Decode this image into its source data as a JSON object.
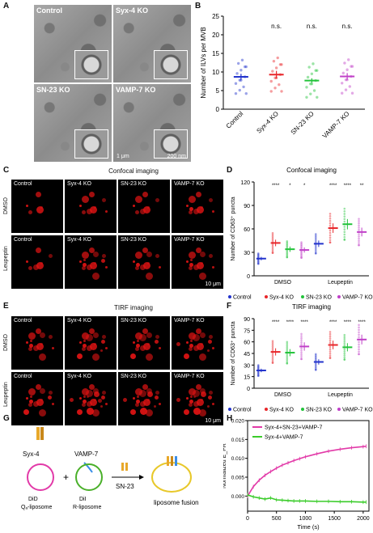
{
  "panels": {
    "A": "A",
    "B": "B",
    "C": "C",
    "D": "D",
    "E": "E",
    "F": "F",
    "G": "G",
    "H": "H"
  },
  "panelA": {
    "labels": [
      "Control",
      "Syx-4 KO",
      "SN-23 KO",
      "VAMP-7 KO"
    ],
    "scale_main": "1 μm",
    "scale_inset": "200 nm"
  },
  "panelC": {
    "title": "Confocal imaging",
    "rows": [
      "DMSO",
      "Leupeptin"
    ],
    "cols": [
      "Control",
      "Syx-4 KO",
      "SN-23 KO",
      "VAMP-7 KO"
    ],
    "scale": "10 μm"
  },
  "panelE": {
    "title": "TIRF imaging",
    "rows": [
      "DMSO",
      "Leupeptin"
    ],
    "cols": [
      "Control",
      "Syx-4 KO",
      "SN-23 KO",
      "VAMP-7 KO"
    ],
    "scale": "10 μm"
  },
  "panelG": {
    "syx": "Syx-4",
    "vamp": "VAMP-7",
    "did": "DiD",
    "dil": "DiI",
    "qlipo": "Qₐ-liposome",
    "rlipo": "R-liposome",
    "plus": "+",
    "sn": "SN-23",
    "fusion": "liposome fusion"
  },
  "colors": {
    "control": "#2233cc",
    "syx": "#e8262a",
    "sn": "#22c33a",
    "vamp": "#c040c8",
    "magenta": "#e23aa8",
    "green": "#3acc2a"
  },
  "chart_data": [
    {
      "type": "scatter",
      "panel": "B",
      "ylabel": "Number of ILVs per MVB",
      "ylim": [
        0,
        25
      ],
      "yticks": [
        0,
        5,
        10,
        15,
        20,
        25
      ],
      "categories": [
        "Control",
        "Syx-4 KO",
        "SN-23 KO",
        "VAMP-7 KO"
      ],
      "means": [
        8.7,
        9.3,
        7.7,
        8.8
      ],
      "sem": [
        0.8,
        1.0,
        0.6,
        0.9
      ],
      "annotations": [
        "",
        "n.s.",
        "n.s.",
        "n.s."
      ]
    },
    {
      "type": "scatter",
      "panel": "D",
      "title": "Confocal imaging",
      "ylabel": "Number of CD63⁺ puncta",
      "ylim": [
        0,
        120
      ],
      "yticks": [
        0,
        30,
        60,
        90,
        120
      ],
      "groups": [
        "DMSO",
        "Leupeptin"
      ],
      "series": [
        {
          "name": "Control",
          "values": [
            22,
            41
          ]
        },
        {
          "name": "Syx-4 KO",
          "values": [
            42,
            61
          ]
        },
        {
          "name": "SN-23 KO",
          "values": [
            34,
            66
          ]
        },
        {
          "name": "VAMP-7 KO",
          "values": [
            33,
            56
          ]
        }
      ],
      "annotations": [
        [
          "",
          "****",
          "*",
          "*"
        ],
        [
          "",
          "****",
          "****",
          "**"
        ]
      ]
    },
    {
      "type": "scatter",
      "panel": "F",
      "title": "TIRF imaging",
      "ylabel": "Number of CD63⁺ puncta",
      "ylim": [
        0,
        90
      ],
      "yticks": [
        0,
        15,
        30,
        45,
        60,
        75,
        90
      ],
      "groups": [
        "DMSO",
        "Leupeptin"
      ],
      "series": [
        {
          "name": "Control",
          "values": [
            23,
            34
          ]
        },
        {
          "name": "Syx-4 KO",
          "values": [
            47,
            56
          ]
        },
        {
          "name": "SN-23 KO",
          "values": [
            46,
            53
          ]
        },
        {
          "name": "VAMP-7 KO",
          "values": [
            54,
            63
          ]
        }
      ],
      "annotations": [
        [
          "",
          "****",
          "****",
          "****"
        ],
        [
          "",
          "****",
          "****",
          "****"
        ]
      ]
    },
    {
      "type": "line",
      "panel": "H",
      "xlabel": "Time (s)",
      "ylabel": "Normalized E_PR",
      "xlim": [
        0,
        2100
      ],
      "xticks": [
        0,
        500,
        1000,
        1500,
        2000
      ],
      "ylim": [
        -0.004,
        0.02
      ],
      "yticks": [
        0.0,
        0.005,
        0.01,
        0.015,
        0.02
      ],
      "ytick_labels": [
        "0.000",
        "0.005",
        "0.010",
        "0.015",
        "0.020"
      ],
      "series": [
        {
          "name": "Syx-4+SN-23+VAMP-7",
          "x": [
            0,
            100,
            200,
            300,
            400,
            500,
            600,
            700,
            800,
            900,
            1000,
            1200,
            1400,
            1600,
            1800,
            2000,
            2050
          ],
          "y": [
            0.0,
            0.0025,
            0.0042,
            0.0055,
            0.0065,
            0.0074,
            0.0082,
            0.0088,
            0.0094,
            0.0099,
            0.0104,
            0.0112,
            0.0119,
            0.0124,
            0.0128,
            0.0131,
            0.0132
          ]
        },
        {
          "name": "Syx-4+VAMP-7",
          "x": [
            0,
            100,
            200,
            300,
            400,
            500,
            600,
            700,
            800,
            900,
            1000,
            1200,
            1400,
            1600,
            1800,
            2000,
            2050
          ],
          "y": [
            0.0003,
            -0.0002,
            -0.0005,
            -0.0008,
            -0.0005,
            -0.001,
            -0.0011,
            -0.0012,
            -0.0013,
            -0.0013,
            -0.0013,
            -0.0014,
            -0.0014,
            -0.0015,
            -0.0015,
            -0.0016,
            -0.0016
          ]
        }
      ]
    }
  ]
}
